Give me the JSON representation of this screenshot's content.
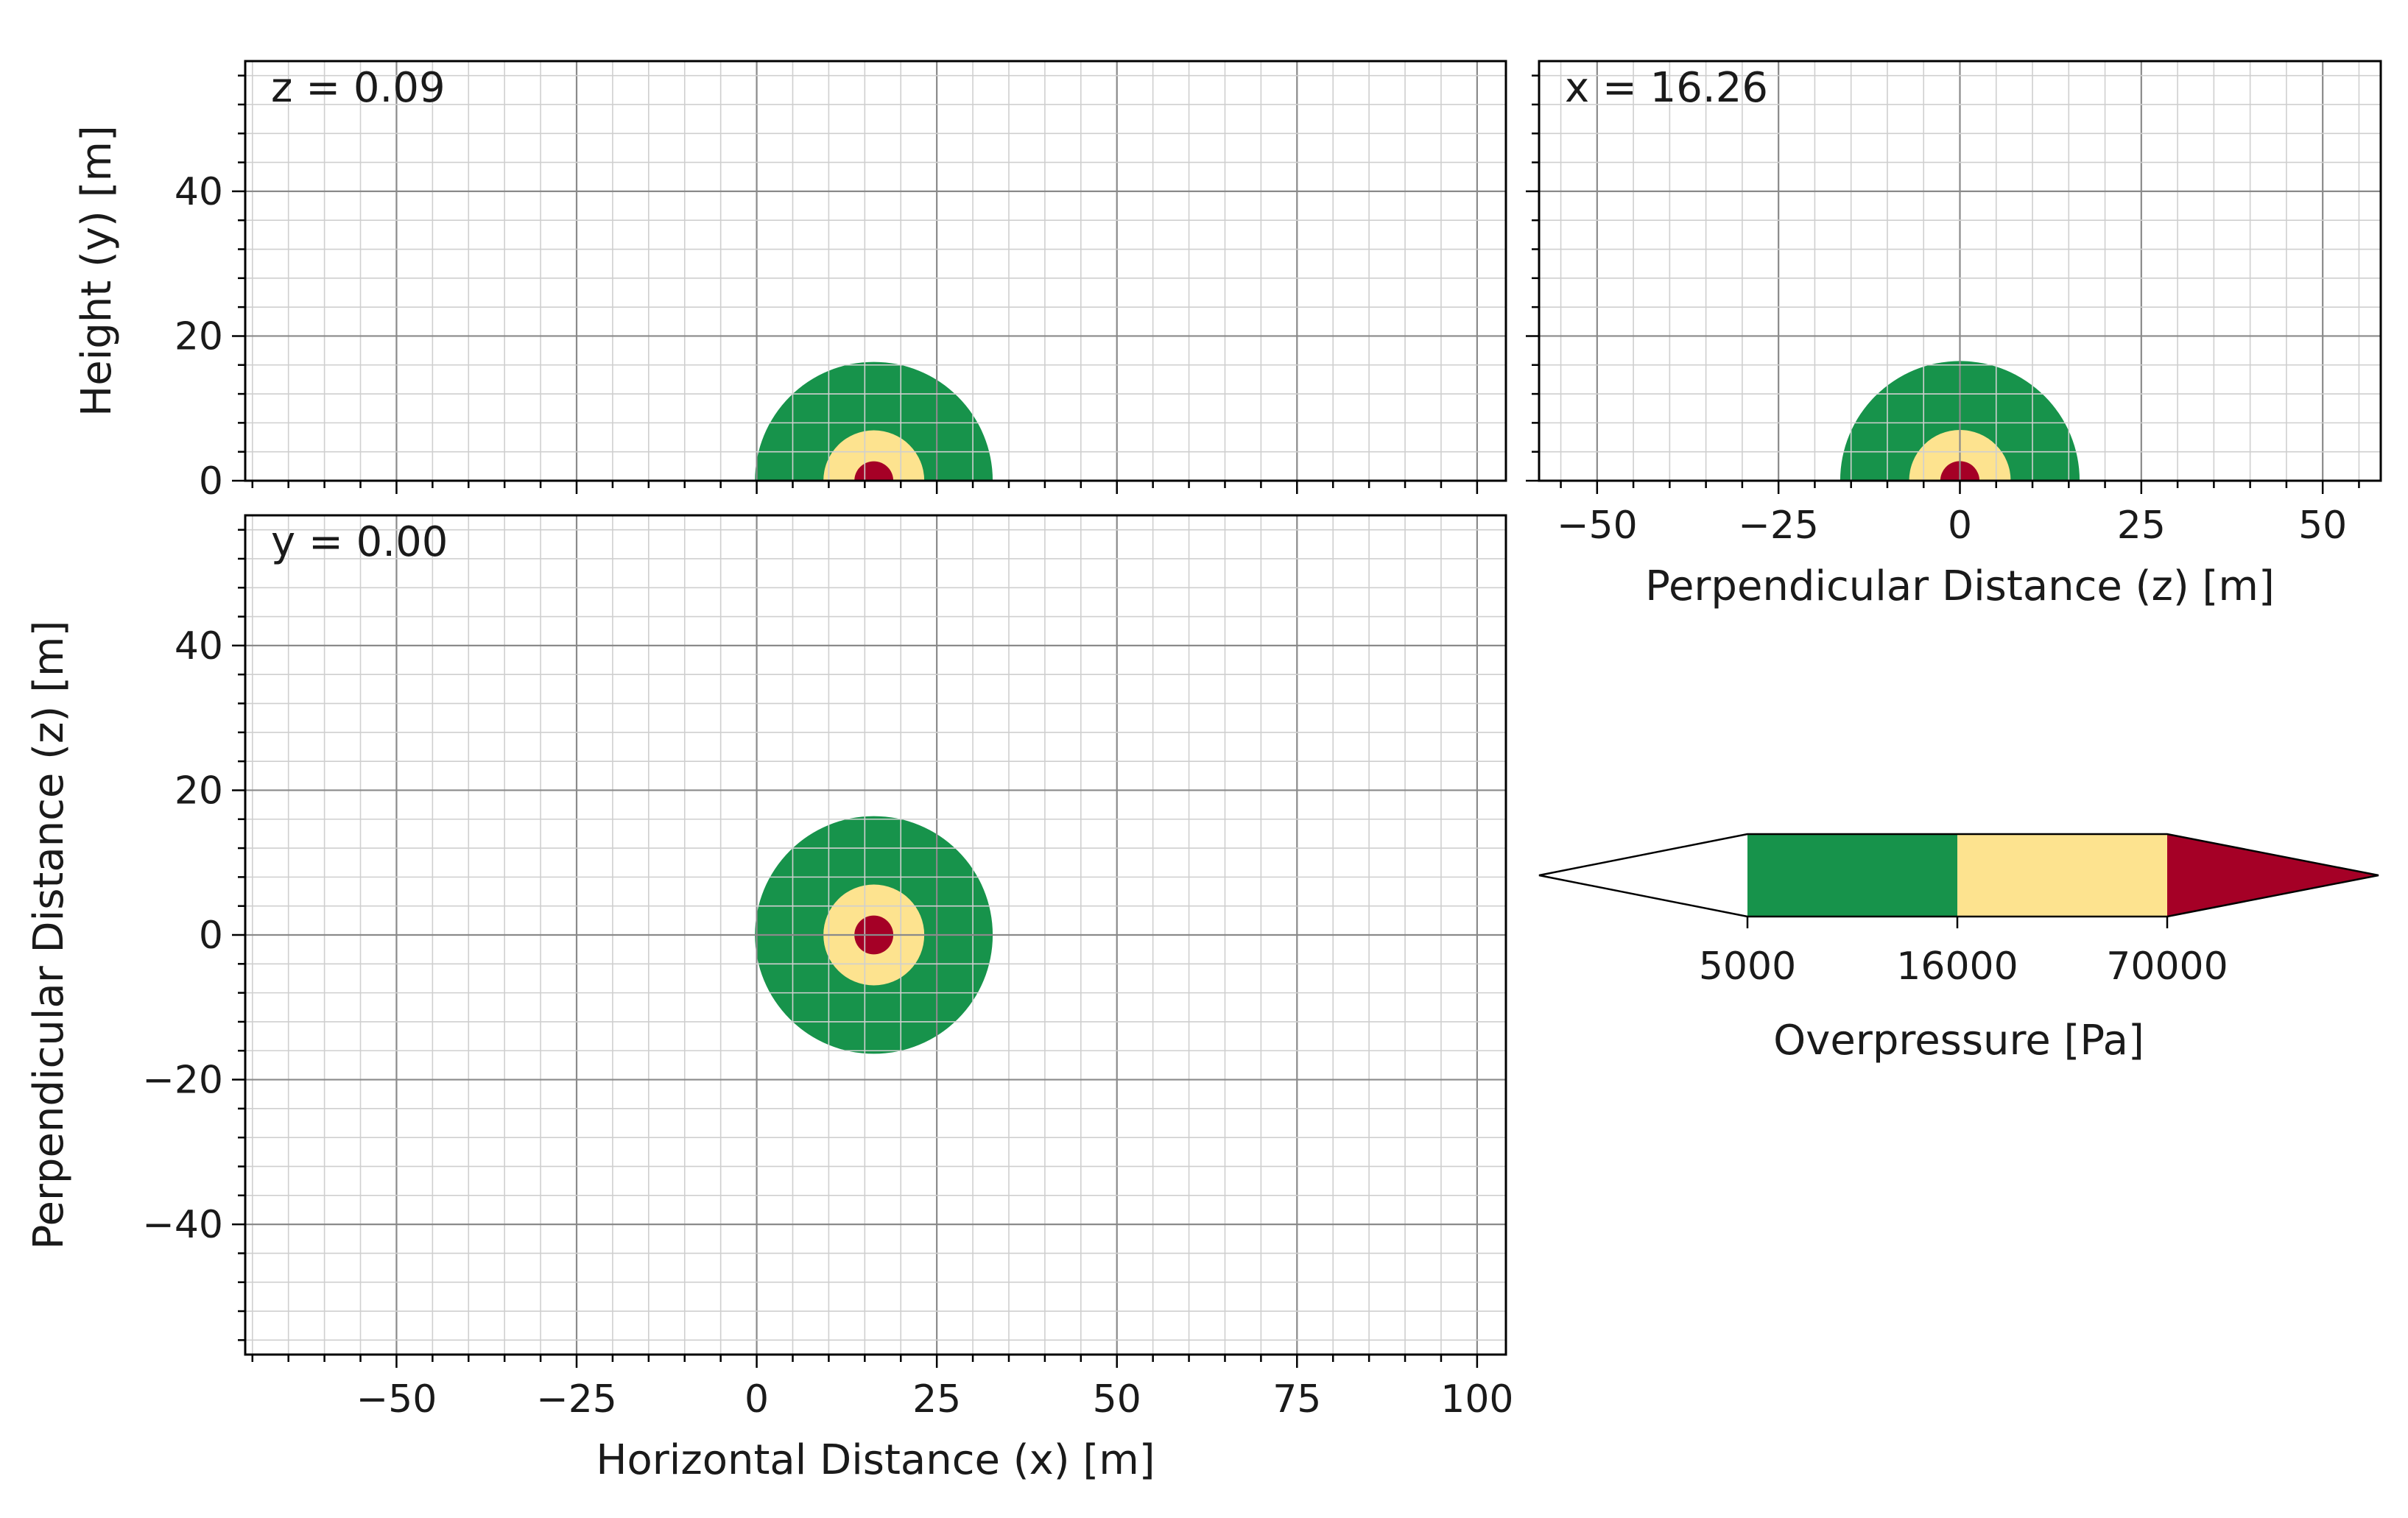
{
  "chart_data": [
    {
      "type": "heatmap",
      "panel": "top-left",
      "annotation": "z = 0.09",
      "xlabel": "",
      "ylabel": "Height (y) [m]",
      "xlim": [
        -71,
        104
      ],
      "ylim": [
        0,
        58
      ],
      "x_ticks": [],
      "y_ticks": [
        {
          "value": 0,
          "label": "0"
        },
        {
          "value": 20,
          "label": "20"
        },
        {
          "value": 40,
          "label": "40"
        }
      ],
      "grid": true,
      "center": [
        16.26,
        0
      ],
      "zones": [
        {
          "radius": 16.5,
          "color": "#17934b"
        },
        {
          "radius": 7.0,
          "color": "#fde38f"
        },
        {
          "radius": 2.7,
          "color": "#a50026"
        }
      ]
    },
    {
      "type": "heatmap",
      "panel": "top-right",
      "annotation": "x = 16.26",
      "xlabel": "Perpendicular Distance (z) [m]",
      "ylabel": "",
      "xlim": [
        -58,
        58
      ],
      "ylim": [
        0,
        58
      ],
      "x_ticks": [
        {
          "value": -50,
          "label": "−50"
        },
        {
          "value": -25,
          "label": "−25"
        },
        {
          "value": 0,
          "label": "0"
        },
        {
          "value": 25,
          "label": "25"
        },
        {
          "value": 50,
          "label": "50"
        }
      ],
      "y_ticks": [],
      "grid": true,
      "center": [
        0,
        0
      ],
      "zones": [
        {
          "radius": 16.5,
          "color": "#17934b"
        },
        {
          "radius": 7.0,
          "color": "#fde38f"
        },
        {
          "radius": 2.7,
          "color": "#a50026"
        }
      ]
    },
    {
      "type": "heatmap",
      "panel": "bottom-left",
      "annotation": "y = 0.00",
      "xlabel": "Horizontal Distance (x) [m]",
      "ylabel": "Perpendicular Distance (z) [m]",
      "xlim": [
        -71,
        104
      ],
      "ylim": [
        -58,
        58
      ],
      "x_ticks": [
        {
          "value": -50,
          "label": "−50"
        },
        {
          "value": -25,
          "label": "−25"
        },
        {
          "value": 0,
          "label": "0"
        },
        {
          "value": 25,
          "label": "25"
        },
        {
          "value": 50,
          "label": "50"
        },
        {
          "value": 75,
          "label": "75"
        },
        {
          "value": 100,
          "label": "100"
        }
      ],
      "y_ticks": [
        {
          "value": -40,
          "label": "−40"
        },
        {
          "value": -20,
          "label": "−20"
        },
        {
          "value": 0,
          "label": "0"
        },
        {
          "value": 20,
          "label": "20"
        },
        {
          "value": 40,
          "label": "40"
        }
      ],
      "grid": true,
      "center": [
        16.26,
        0
      ],
      "zones": [
        {
          "radius": 16.5,
          "color": "#17934b"
        },
        {
          "radius": 7.0,
          "color": "#fde38f"
        },
        {
          "radius": 2.7,
          "color": "#a50026"
        }
      ]
    }
  ],
  "colorbar": {
    "label": "Overpressure [Pa]",
    "segments": [
      {
        "color": "#ffffff"
      },
      {
        "color": "#17934b"
      },
      {
        "color": "#fde38f"
      },
      {
        "color": "#a50026"
      }
    ],
    "tick_labels": [
      "5000",
      "16000",
      "70000"
    ]
  }
}
